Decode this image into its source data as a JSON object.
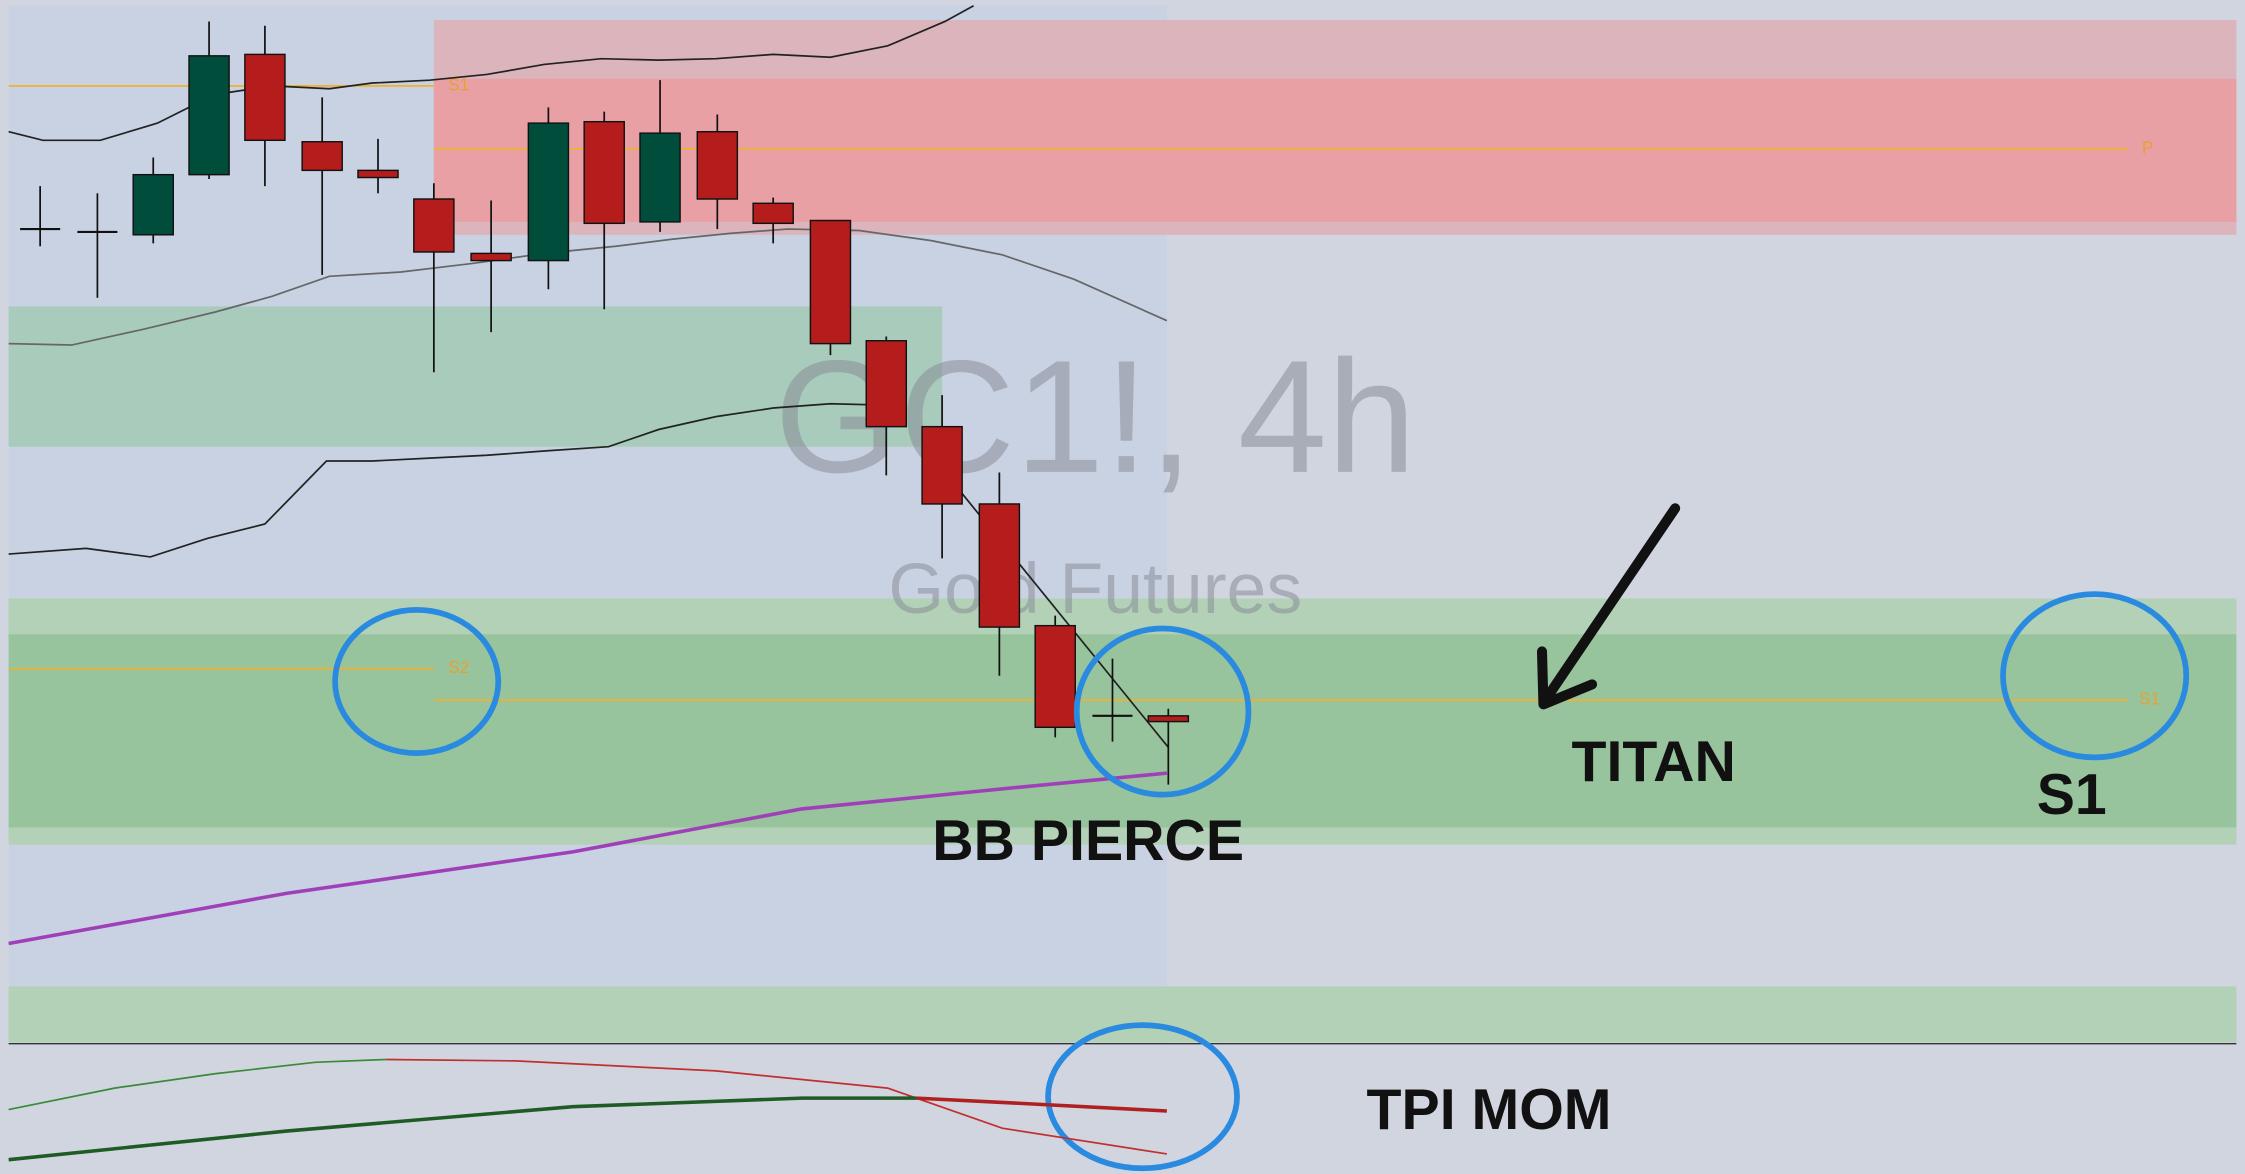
{
  "watermark": {
    "symbol": "GC1!, 4h",
    "name": "Gold Futures"
  },
  "levels": [
    "S1",
    "P",
    "S2",
    "S1"
  ],
  "annotations": {
    "bb_pierce": "BB PIERCE",
    "titan": "TITAN",
    "s1": "S1",
    "tpi_mom": "TPI MOM"
  }
}
